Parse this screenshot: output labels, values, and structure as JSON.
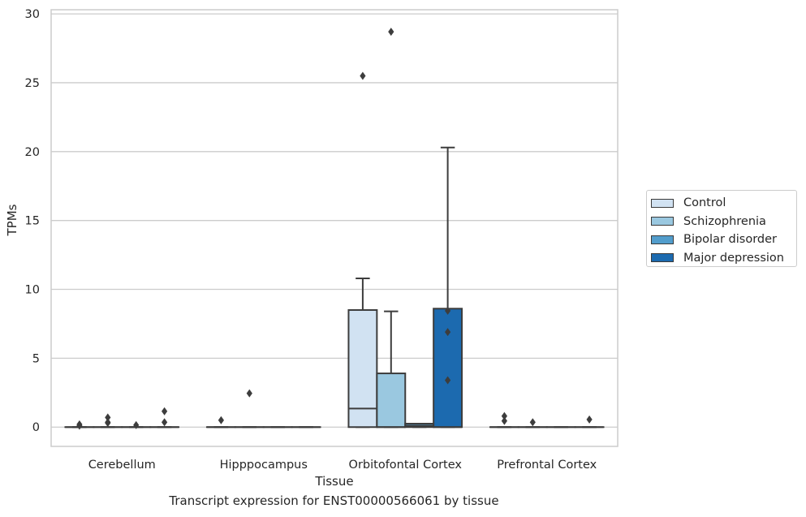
{
  "chart_data": {
    "type": "box",
    "title": "",
    "caption": "Transcript expression for ENST00000566061 by tissue",
    "xlabel": "Tissue",
    "ylabel": "TPMs",
    "ylim": [
      -1.4,
      30.3
    ],
    "yticks": [
      0,
      5,
      10,
      15,
      20,
      25,
      30
    ],
    "grid": "horizontal",
    "legend_position": "right",
    "categories": [
      "Cerebellum",
      "Hipppocampus",
      "Orbitofontal Cortex",
      "Prefrontal Cortex"
    ],
    "series": [
      {
        "name": "Control",
        "color": "#d1e2f2",
        "boxes": [
          {
            "q1": 0,
            "median": 0,
            "q3": 0,
            "whislo": 0,
            "whishi": 0,
            "fliers": [
              0.2,
              0.1
            ]
          },
          {
            "q1": 0,
            "median": 0,
            "q3": 0,
            "whislo": 0,
            "whishi": 0,
            "fliers": [
              0.5
            ]
          },
          {
            "q1": 0,
            "median": 1.35,
            "q3": 8.5,
            "whislo": 0,
            "whishi": 10.8,
            "fliers": [
              25.5
            ]
          },
          {
            "q1": 0,
            "median": 0,
            "q3": 0,
            "whislo": 0,
            "whishi": 0,
            "fliers": [
              0.8,
              0.45
            ]
          }
        ]
      },
      {
        "name": "Schizophrenia",
        "color": "#9ac8e0",
        "boxes": [
          {
            "q1": 0,
            "median": 0,
            "q3": 0,
            "whislo": 0,
            "whishi": 0,
            "fliers": [
              0.7,
              0.35,
              0.3
            ]
          },
          {
            "q1": 0,
            "median": 0,
            "q3": 0,
            "whislo": 0,
            "whishi": 0,
            "fliers": [
              2.45
            ]
          },
          {
            "q1": 0,
            "median": 0,
            "q3": 3.9,
            "whislo": 0,
            "whishi": 8.4,
            "fliers": [
              28.7
            ]
          },
          {
            "q1": 0,
            "median": 0,
            "q3": 0,
            "whislo": 0,
            "whishi": 0,
            "fliers": [
              0.35
            ]
          }
        ]
      },
      {
        "name": "Bipolar disorder",
        "color": "#529dcc",
        "boxes": [
          {
            "q1": 0,
            "median": 0,
            "q3": 0,
            "whislo": 0,
            "whishi": 0,
            "fliers": [
              0.15
            ]
          },
          {
            "q1": 0,
            "median": 0,
            "q3": 0,
            "whislo": 0,
            "whishi": 0,
            "fliers": []
          },
          {
            "q1": 0,
            "median": 0.1,
            "q3": 0.25,
            "whislo": 0,
            "whishi": 0.25,
            "fliers": []
          },
          {
            "q1": 0,
            "median": 0,
            "q3": 0,
            "whislo": 0,
            "whishi": 0,
            "fliers": []
          }
        ]
      },
      {
        "name": "Major depression",
        "color": "#1c6aaf",
        "boxes": [
          {
            "q1": 0,
            "median": 0,
            "q3": 0,
            "whislo": 0,
            "whishi": 0,
            "fliers": [
              1.15,
              0.35
            ]
          },
          {
            "q1": 0,
            "median": 0,
            "q3": 0,
            "whislo": 0,
            "whishi": 0,
            "fliers": []
          },
          {
            "q1": 0,
            "median": 0,
            "q3": 8.6,
            "whislo": 0,
            "whishi": 20.3,
            "fliers": [
              8.45,
              6.9,
              3.4
            ]
          },
          {
            "q1": 0,
            "median": 0,
            "q3": 0,
            "whislo": 0,
            "whishi": 0,
            "fliers": [
              0.55
            ]
          }
        ]
      }
    ]
  }
}
